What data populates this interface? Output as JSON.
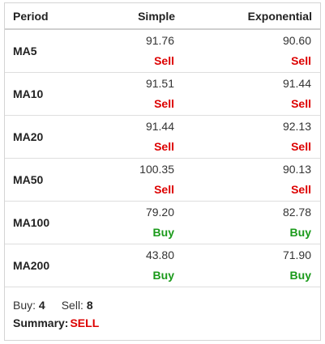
{
  "header": {
    "period": "Period",
    "simple": "Simple",
    "exponential": "Exponential"
  },
  "rows": [
    {
      "period": "MA5",
      "simple_value": "91.76",
      "simple_signal": "Sell",
      "exp_value": "90.60",
      "exp_signal": "Sell"
    },
    {
      "period": "MA10",
      "simple_value": "91.51",
      "simple_signal": "Sell",
      "exp_value": "91.44",
      "exp_signal": "Sell"
    },
    {
      "period": "MA20",
      "simple_value": "91.44",
      "simple_signal": "Sell",
      "exp_value": "92.13",
      "exp_signal": "Sell"
    },
    {
      "period": "MA50",
      "simple_value": "100.35",
      "simple_signal": "Sell",
      "exp_value": "90.13",
      "exp_signal": "Sell"
    },
    {
      "period": "MA100",
      "simple_value": "79.20",
      "simple_signal": "Buy",
      "exp_value": "82.78",
      "exp_signal": "Buy"
    },
    {
      "period": "MA200",
      "simple_value": "43.80",
      "simple_signal": "Buy",
      "exp_value": "71.90",
      "exp_signal": "Buy"
    }
  ],
  "footer": {
    "buy_label": "Buy:",
    "buy_count": "4",
    "sell_label": "Sell:",
    "sell_count": "8",
    "summary_label": "Summary:",
    "summary_value": "SELL"
  },
  "colors": {
    "sell": "#dd0000",
    "buy": "#1a9a1a"
  }
}
